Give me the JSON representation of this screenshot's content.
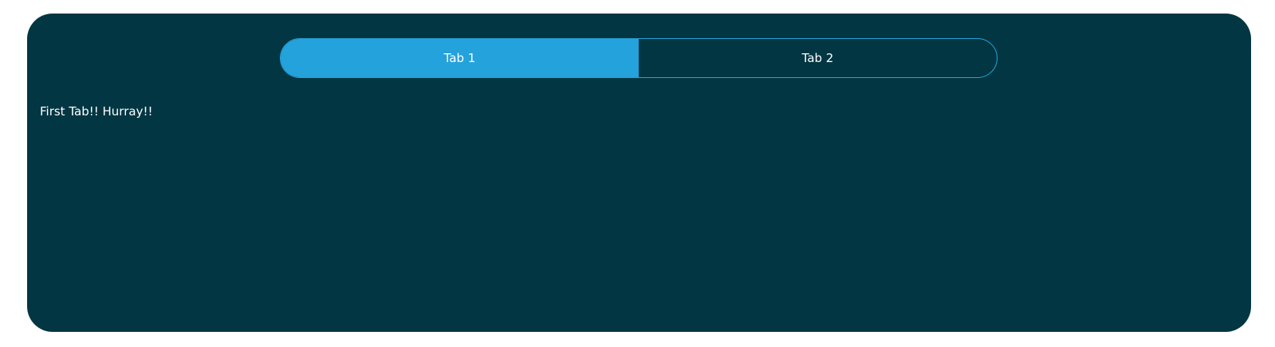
{
  "tabs": [
    {
      "label": "Tab 1",
      "active": true
    },
    {
      "label": "Tab 2",
      "active": false
    }
  ],
  "content": {
    "text": "First Tab!! Hurray!!"
  },
  "colors": {
    "panel_background": "#023642",
    "accent": "#24a2db",
    "text": "#ffffff"
  }
}
